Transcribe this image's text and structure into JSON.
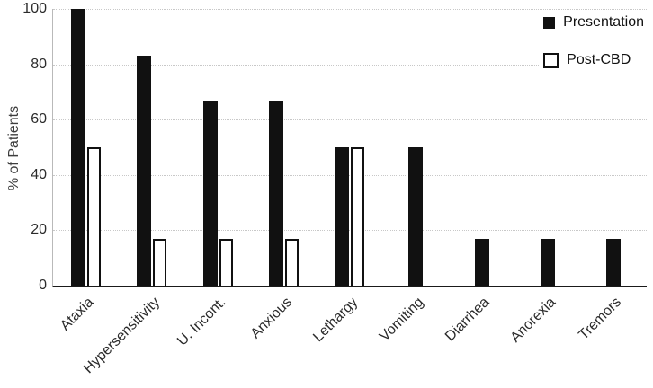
{
  "chart_data": {
    "type": "bar",
    "title": "",
    "xlabel": "",
    "ylabel": "% of Patients",
    "ylim": [
      0,
      100
    ],
    "yticks": [
      0,
      20,
      40,
      60,
      80,
      100
    ],
    "grid": "dotted-horizontal",
    "legend_position": "top-right",
    "categories": [
      "Ataxia",
      "Hypersensitivity",
      "U. Incont.",
      "Anxious",
      "Lethargy",
      "Vomiting",
      "Diarrhea",
      "Anorexia",
      "Tremors"
    ],
    "series": [
      {
        "name": "Presentation",
        "style": "filled",
        "color": "#111111",
        "values": [
          100,
          83,
          67,
          67,
          50,
          50,
          17,
          17,
          17
        ]
      },
      {
        "name": "Post-CBD",
        "style": "outline",
        "color": "#ffffff",
        "border_color": "#111111",
        "values": [
          50,
          17,
          17,
          17,
          50,
          0,
          0,
          0,
          0
        ]
      }
    ]
  }
}
